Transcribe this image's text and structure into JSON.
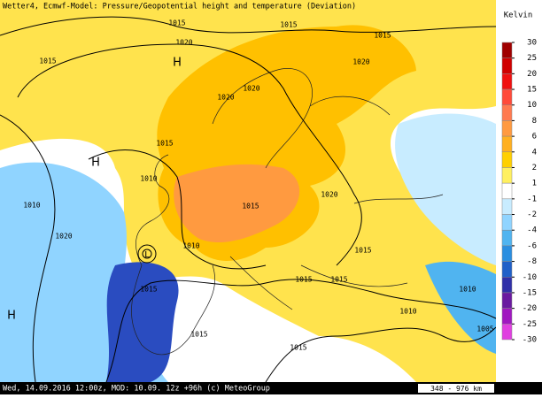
{
  "header": {
    "title": "Wetter4, Ecmwf-Model: Pressure/Geopotential height and temperature (Deviation)"
  },
  "footer": {
    "date_text": "Wed, 14.09.2016 12:00z, MOD: 10.09. 12z +96h (c) MeteoGroup",
    "scale": "348 - 976 km"
  },
  "legend": {
    "unit": "Kelvin",
    "ticks": [
      30,
      25,
      20,
      15,
      10,
      8,
      6,
      4,
      2,
      1,
      -1,
      -2,
      -4,
      -6,
      -8,
      -10,
      -15,
      -20,
      -25,
      -30
    ],
    "colors": [
      "#a00000",
      "#d00000",
      "#f01010",
      "#ff4a3a",
      "#ff7a50",
      "#ff9a40",
      "#ffb020",
      "#ffd000",
      "#fff060",
      "#ffffff",
      "#c8ecff",
      "#90d4ff",
      "#50b4f0",
      "#2a8ee0",
      "#2060c8",
      "#3030a8",
      "#6a1aa0",
      "#a018c0",
      "#e040e0"
    ]
  },
  "map": {
    "pressure_labels": [
      "1015",
      "1015",
      "1015",
      "1020",
      "1015",
      "1020",
      "1020",
      "1020",
      "1015",
      "1010",
      "1010",
      "1020",
      "1015",
      "1020",
      "1010",
      "1015",
      "1015",
      "1015",
      "1015",
      "1010",
      "1010",
      "1005",
      "1015",
      "1015"
    ],
    "pressure_centers": [
      "H",
      "H",
      "H",
      "L"
    ]
  }
}
